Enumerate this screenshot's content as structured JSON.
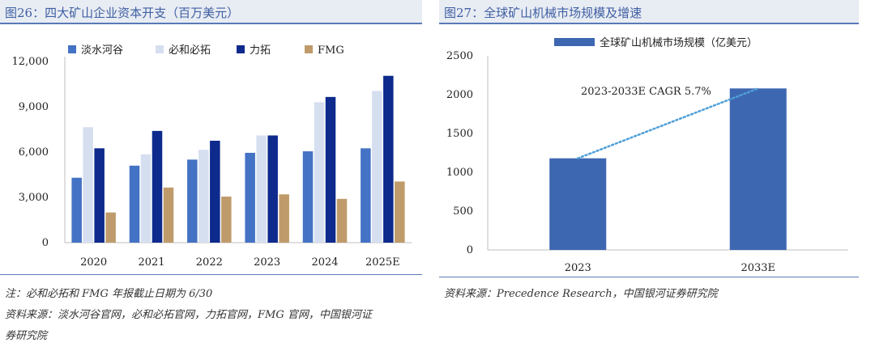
{
  "left_panel": {
    "title": "图26：四大矿山企业资本开支（百万美元）",
    "note_line1": "注：必和必拓和 FMG 年报截止日期为 6/30",
    "note_line2": "资料来源：淡水河谷官网，必和必拓官网，力拓官网，FMG 官网，中国银河证",
    "note_line3": "券研究院"
  },
  "right_panel": {
    "title": "图27：全球矿山机械市场规模及增速",
    "source": "资料来源：Precedence Research，中国银河证券研究院"
  },
  "colors": {
    "vale": "#4472c4",
    "bhp": "#d6dff0",
    "rio": "#0d2a8c",
    "fmg": "#bf9b6b",
    "market": "#3e67b1",
    "trend": "#4f9fd8",
    "accent": "#3f5fa3"
  },
  "chart_data": [
    {
      "type": "bar",
      "categories": [
        "2020",
        "2021",
        "2022",
        "2023",
        "2024",
        "2025E"
      ],
      "series": [
        {
          "name": "淡水河谷",
          "color_key": "vale",
          "values": [
            4300,
            5100,
            5500,
            5950,
            6050,
            6250
          ]
        },
        {
          "name": "必和必拓",
          "color_key": "bhp",
          "values": [
            7650,
            5850,
            6150,
            7100,
            9300,
            10050
          ]
        },
        {
          "name": "力拓",
          "color_key": "rio",
          "values": [
            6250,
            7400,
            6750,
            7100,
            9650,
            11050
          ]
        },
        {
          "name": "FMG",
          "color_key": "fmg",
          "values": [
            2000,
            3650,
            3050,
            3200,
            2900,
            4050
          ]
        }
      ],
      "ylim": [
        0,
        12000
      ],
      "yticks": [
        "0",
        "3,000",
        "6,000",
        "9,000",
        "12,000"
      ],
      "legend": "top"
    },
    {
      "type": "bar",
      "categories": [
        "2023",
        "2033E"
      ],
      "series": [
        {
          "name": "全球矿山机械市场规模（亿美元）",
          "color_key": "market",
          "values": [
            1180,
            2080
          ]
        }
      ],
      "ylim": [
        0,
        2500
      ],
      "yticks": [
        "0",
        "500",
        "1000",
        "1500",
        "2000",
        "2500"
      ],
      "annotation": "2023-2033E CAGR 5.7%",
      "legend": "top"
    }
  ]
}
